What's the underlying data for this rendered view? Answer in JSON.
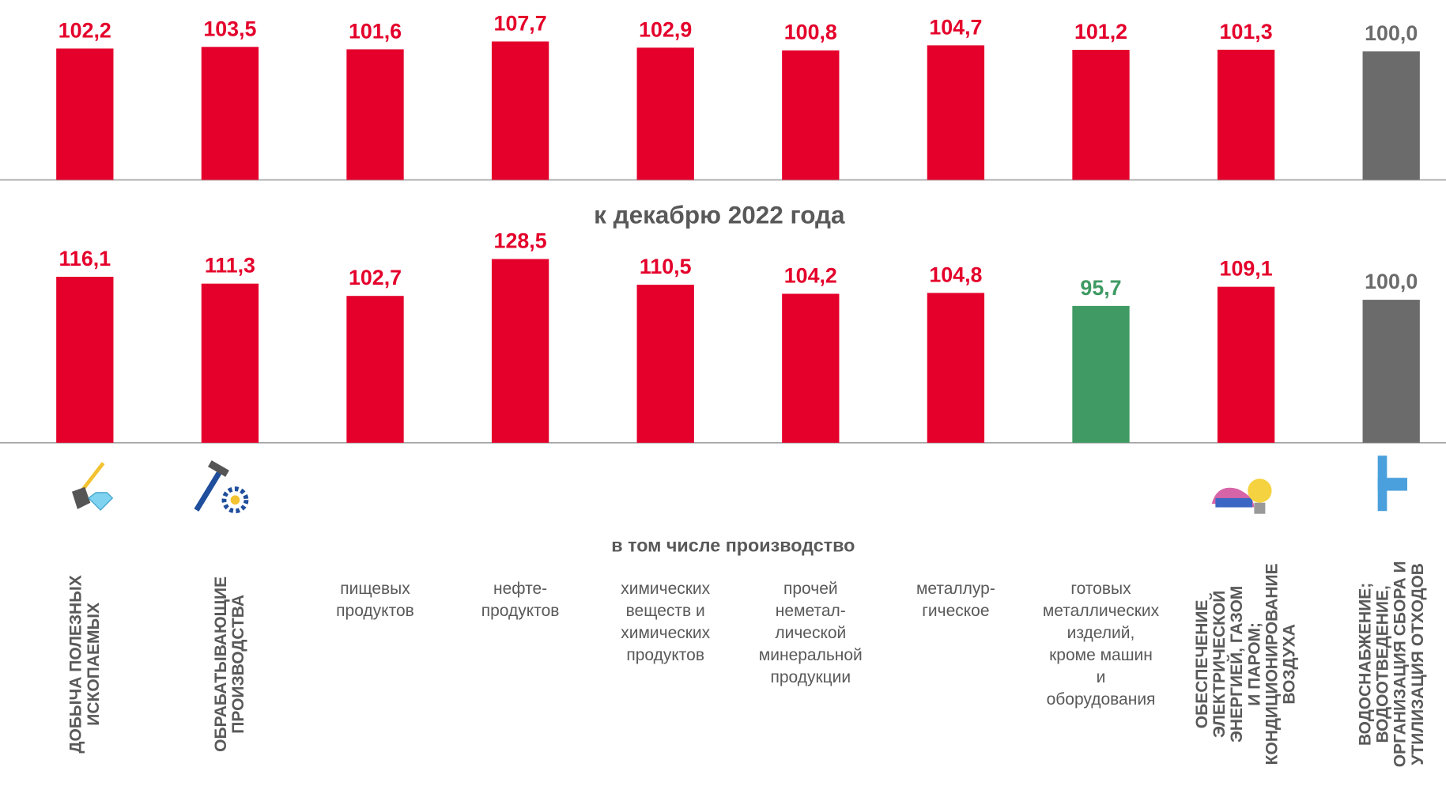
{
  "chart_data": [
    {
      "type": "bar",
      "values": [
        102.2,
        103.5,
        101.6,
        107.7,
        102.9,
        100.8,
        104.7,
        101.2,
        101.3,
        100.0
      ],
      "value_labels": [
        "102,2",
        "103,5",
        "101,6",
        "107,7",
        "102,9",
        "100,8",
        "104,7",
        "101,2",
        "101,3",
        "100,0"
      ],
      "colors": [
        "#e4002b",
        "#e4002b",
        "#e4002b",
        "#e4002b",
        "#e4002b",
        "#e4002b",
        "#e4002b",
        "#e4002b",
        "#e4002b",
        "#6b6b6b"
      ],
      "ylim": [
        0,
        140
      ]
    },
    {
      "type": "bar",
      "title": "к декабрю 2022 года",
      "group_label": "в том числе производство",
      "categories": [
        "ДОБЫЧА ПОЛЕЗНЫХ\nИСКОПАЕМЫХ",
        "ОБРАБАТЫВАЮЩИЕ\nПРОИЗВОДСТВА",
        "пищевых\nпродуктов",
        "нефте-\nпродуктов",
        "химических\nвеществ и\nхимических\nпродуктов",
        "прочей\nнеметал-\nлической\nминеральной\nпродукции",
        "металлур-\nгическое",
        "готовых\nметаллических\nизделий,\nкроме машин\nи\nоборудования",
        "ОБЕСПЕЧЕНИЕ\nЭЛЕКТРИЧЕСКОЙ\nЭНЕРГИЕЙ, ГАЗОМ\nИ ПАРОМ;\nКОНДИЦИОНИРОВАНИЕ\nВОЗДУХА",
        "ВОДОСНАБЖЕНИЕ;\nВОДООТВЕДЕНИЕ,\nОРГАНИЗАЦИЯ СБОРА И\nУТИЛИЗАЦИЯ ОТХОДОВ"
      ],
      "values": [
        116.1,
        111.3,
        102.7,
        128.5,
        110.5,
        104.2,
        104.8,
        95.7,
        109.1,
        100.0
      ],
      "value_labels": [
        "116,1",
        "111,3",
        "102,7",
        "128,5",
        "110,5",
        "104,2",
        "104,8",
        "95,7",
        "109,1",
        "100,0"
      ],
      "colors": [
        "#e4002b",
        "#e4002b",
        "#e4002b",
        "#e4002b",
        "#e4002b",
        "#e4002b",
        "#e4002b",
        "#3f9a63",
        "#e4002b",
        "#6b6b6b"
      ],
      "ylim": [
        0,
        150
      ]
    }
  ]
}
